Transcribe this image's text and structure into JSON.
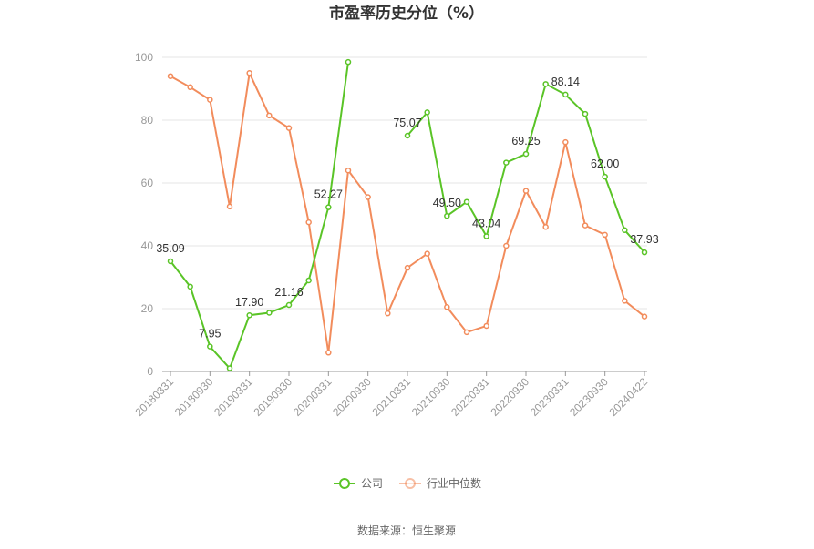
{
  "chart_data": {
    "type": "line",
    "title": "市盈率历史分位（%）",
    "source": "数据来源：恒生聚源",
    "xlabel": "",
    "ylabel": "",
    "ylim": [
      0,
      100
    ],
    "yticks": [
      0,
      20,
      40,
      60,
      80,
      100
    ],
    "grid": true,
    "legend_position": "bottom",
    "x_tick_labels": [
      "20180331",
      "20180930",
      "20190331",
      "20190930",
      "20200331",
      "20200930",
      "20210331",
      "20210930",
      "20220331",
      "20220930",
      "20230331",
      "20230930",
      "20240422"
    ],
    "x_tick_indices": [
      0,
      2,
      4,
      6,
      8,
      10,
      12,
      14,
      16,
      18,
      20,
      22,
      24
    ],
    "series": [
      {
        "name": "公司",
        "color": "#5ac427",
        "values": [
          35.09,
          27,
          7.95,
          1,
          17.9,
          18.7,
          21.16,
          29,
          52.27,
          98.5,
          null,
          null,
          75.07,
          82.5,
          49.5,
          54,
          43.04,
          66.5,
          69.25,
          91.5,
          88.14,
          82,
          62.0,
          45,
          37.93
        ],
        "labels": [
          {
            "index": 0,
            "text": "35.09"
          },
          {
            "index": 2,
            "text": "7.95"
          },
          {
            "index": 4,
            "text": "17.90"
          },
          {
            "index": 6,
            "text": "21.16"
          },
          {
            "index": 8,
            "text": "52.27"
          },
          {
            "index": 12,
            "text": "75.07"
          },
          {
            "index": 14,
            "text": "49.50"
          },
          {
            "index": 16,
            "text": "43.04"
          },
          {
            "index": 18,
            "text": "69.25"
          },
          {
            "index": 20,
            "text": "88.14"
          },
          {
            "index": 22,
            "text": "62.00"
          },
          {
            "index": 24,
            "text": "37.93"
          }
        ]
      },
      {
        "name": "行业中位数",
        "color": "#f28c5c",
        "values": [
          94,
          90.5,
          86.5,
          52.5,
          95,
          81.5,
          77.5,
          47.5,
          6,
          64,
          55.5,
          18.5,
          33,
          37.5,
          20.5,
          12.5,
          14.5,
          40,
          57.5,
          46,
          73,
          46.5,
          43.5,
          22.5,
          17.5
        ],
        "labels": []
      }
    ]
  }
}
